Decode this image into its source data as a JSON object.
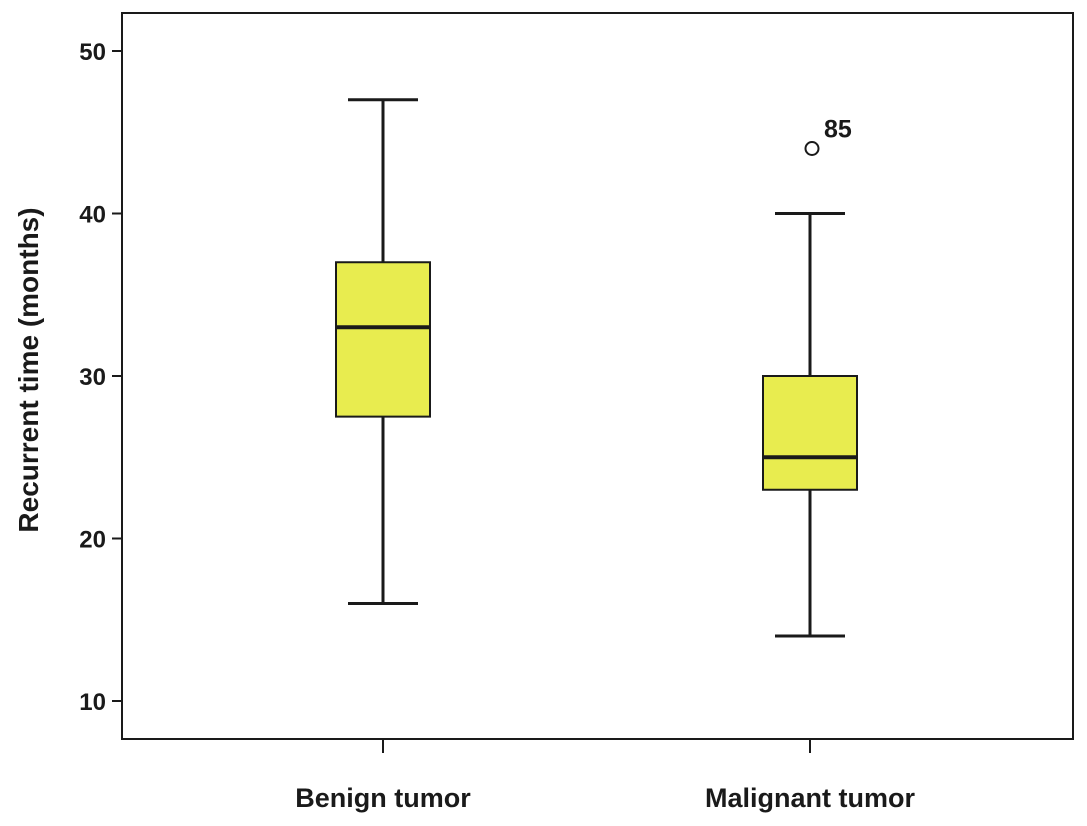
{
  "chart_data": {
    "type": "boxplot",
    "title": "",
    "xlabel": "",
    "ylabel": "Recurrent time (months)",
    "ylim": [
      8,
      52
    ],
    "yticks": [
      10,
      20,
      30,
      40,
      50
    ],
    "grid": false,
    "legend": "none",
    "categories": [
      "Benign tumor",
      "Malignant tumor"
    ],
    "boxes": [
      {
        "category": "Benign tumor",
        "whisker_low": 16,
        "q1": 27.5,
        "median": 33,
        "q3": 37,
        "whisker_high": 47,
        "outliers": []
      },
      {
        "category": "Malignant tumor",
        "whisker_low": 14,
        "q1": 23,
        "median": 25,
        "q3": 30,
        "whisker_high": 40,
        "outliers": [
          {
            "value": 44,
            "label": "85"
          }
        ]
      }
    ],
    "colors": {
      "box_fill": "#e8ec4f",
      "stroke": "#1a1a1a",
      "background": "#ffffff"
    }
  }
}
